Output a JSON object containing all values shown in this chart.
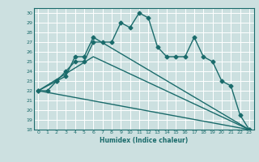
{
  "xlabel": "Humidex (Indice chaleur)",
  "bg_color": "#cce0e0",
  "grid_color": "#ffffff",
  "line_color": "#1a6b6b",
  "xlim": [
    -0.5,
    23.5
  ],
  "ylim": [
    18,
    30.5
  ],
  "xticks": [
    0,
    1,
    2,
    3,
    4,
    5,
    6,
    7,
    8,
    9,
    10,
    11,
    12,
    13,
    14,
    15,
    16,
    17,
    18,
    19,
    20,
    21,
    22,
    23
  ],
  "yticks": [
    18,
    19,
    20,
    21,
    22,
    23,
    24,
    25,
    26,
    27,
    28,
    29,
    30
  ],
  "series1_x": [
    0,
    1,
    2,
    3,
    4,
    5,
    6,
    7,
    8,
    9,
    10,
    11,
    12,
    13,
    14,
    15,
    16,
    17,
    18,
    19,
    20,
    21,
    22,
    23
  ],
  "series1_y": [
    22,
    22,
    23,
    24,
    25,
    25,
    27,
    27,
    27,
    29,
    28.5,
    30,
    29.5,
    26.5,
    25.5,
    25.5,
    25.5,
    27.5,
    25.5,
    25,
    23,
    22.5,
    19.5,
    18
  ],
  "series2_x": [
    0,
    2,
    3,
    4,
    5,
    6,
    23
  ],
  "series2_y": [
    22,
    23,
    23.5,
    25.5,
    25.5,
    27.5,
    18
  ],
  "series3_x": [
    0,
    6,
    23
  ],
  "series3_y": [
    22,
    25.5,
    18
  ],
  "series4_x": [
    0,
    23
  ],
  "series4_y": [
    22,
    18
  ],
  "marker": "D",
  "markersize": 2.5,
  "linewidth": 1.0
}
